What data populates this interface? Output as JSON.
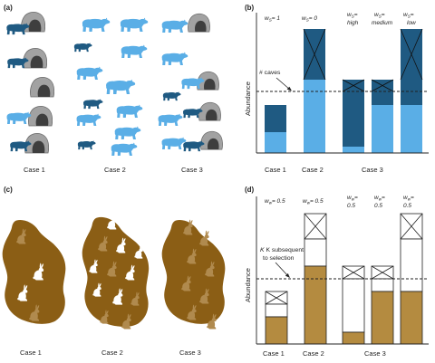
{
  "panels": {
    "a": {
      "label": "(a)",
      "cases": [
        "Case  1",
        "Case 2",
        "Case 3"
      ],
      "colors": {
        "light_bear": "#5aaee6",
        "dark_bear": "#1f5a82",
        "cave_outer": "#999999",
        "cave_inner": "#4a4a4a"
      }
    },
    "b": {
      "label": "(b)",
      "ylabel": "Abundance",
      "threshold_label": "# caves",
      "weights": [
        "w",
        "S",
        "= 1",
        "w",
        "S",
        "= 0",
        "w",
        "S",
        "=",
        "high",
        "w",
        "S",
        "=",
        "medium",
        "w",
        "S",
        "=",
        "low"
      ],
      "cases": [
        "Case  1",
        "Case 2",
        "Case 3"
      ],
      "colors": {
        "light": "#5aaee6",
        "dark": "#1f5a82"
      }
    },
    "c": {
      "label": "(c)",
      "cases": [
        "Case 1",
        "Case 2",
        "Case 3"
      ],
      "colors": {
        "land": "#8b5e15",
        "rabbit_brown": "#b08a4e",
        "rabbit_white": "#ffffff"
      }
    },
    "d": {
      "label": "(d)",
      "ylabel": "Abundance",
      "threshold_label_1": "K subsequent",
      "threshold_label_2": "to selection",
      "weights": [
        "w",
        "w",
        "= 0.5",
        "w",
        "w",
        "= 0.5",
        "w",
        "w",
        "=",
        "0.5",
        "w",
        "w",
        "=",
        "0.5",
        "w",
        "w",
        "=",
        "0.5"
      ],
      "cases": [
        "Case 1",
        "Case 2",
        "Case 3"
      ],
      "colors": {
        "fill": "#b48b40"
      }
    }
  }
}
